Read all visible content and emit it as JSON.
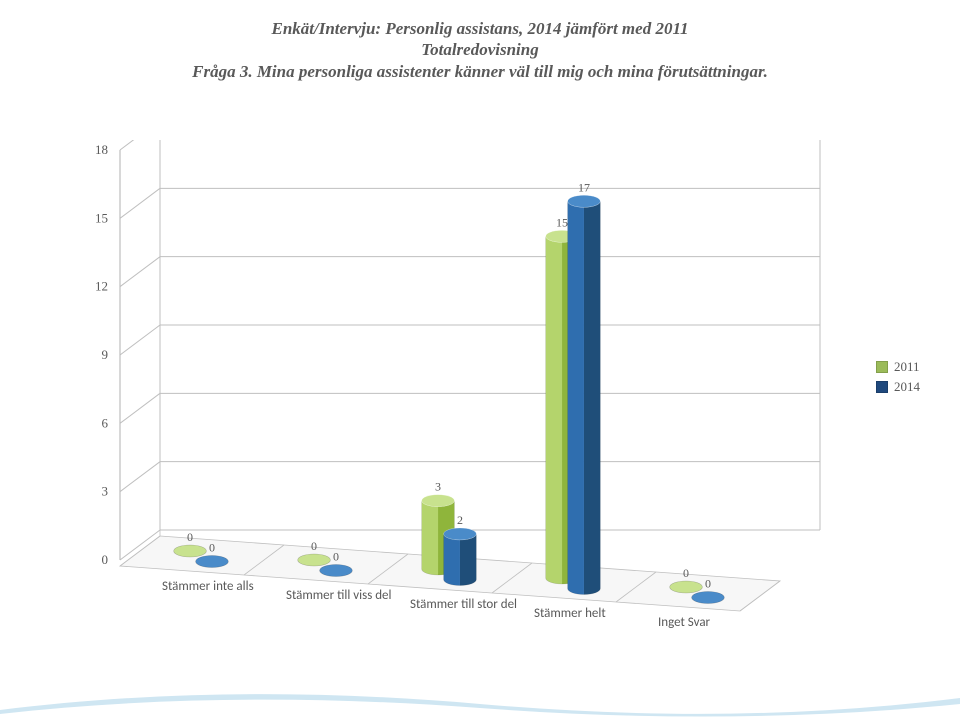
{
  "title": {
    "line1": "Enkät/Intervju: Personlig assistans, 2014 jämfört med 2011",
    "line2": "Totalredovisning",
    "line3": "Fråga 3. Mina personliga assistenter känner väl till mig och mina förutsättningar.",
    "color": "#595959",
    "fontsize": 17
  },
  "chart": {
    "type": "bar-3d-grouped",
    "categories": [
      "Stämmer inte alls",
      "Stämmer till viss del",
      "Stämmer till stor del",
      "Stämmer helt",
      "Inget Svar"
    ],
    "series": [
      {
        "name": "2011",
        "color_left": "#b4d46c",
        "color_right": "#8fb53b",
        "color_top": "#c8e28e",
        "values": [
          0,
          0,
          3,
          15,
          0
        ]
      },
      {
        "name": "2014",
        "color_left": "#2f6eaf",
        "color_right": "#1f4e79",
        "color_top": "#4a8bc9",
        "values": [
          0,
          0,
          2,
          17,
          0
        ]
      }
    ],
    "yaxis": {
      "min": 0,
      "max": 18,
      "ticks": [
        0,
        3,
        6,
        9,
        12,
        15,
        18
      ],
      "label_fontsize": 13,
      "label_color": "#595959"
    },
    "grid_color": "#bfbfbf",
    "floor_color": "#d9d9d9",
    "back_wall_color": "#ffffff",
    "data_label_fontsize": 12,
    "data_label_color": "#595959",
    "category_label_fontfamily": "Calibri, Arial, sans-serif",
    "category_label_fontsize": 13
  },
  "legend": {
    "items": [
      {
        "label": "2011",
        "color": "#9bbb59"
      },
      {
        "label": "2014",
        "color": "#1f497d"
      }
    ],
    "fontsize": 13
  },
  "wave": {
    "outer_color": "#cfe6f2",
    "inner_color": "#ffffff"
  }
}
